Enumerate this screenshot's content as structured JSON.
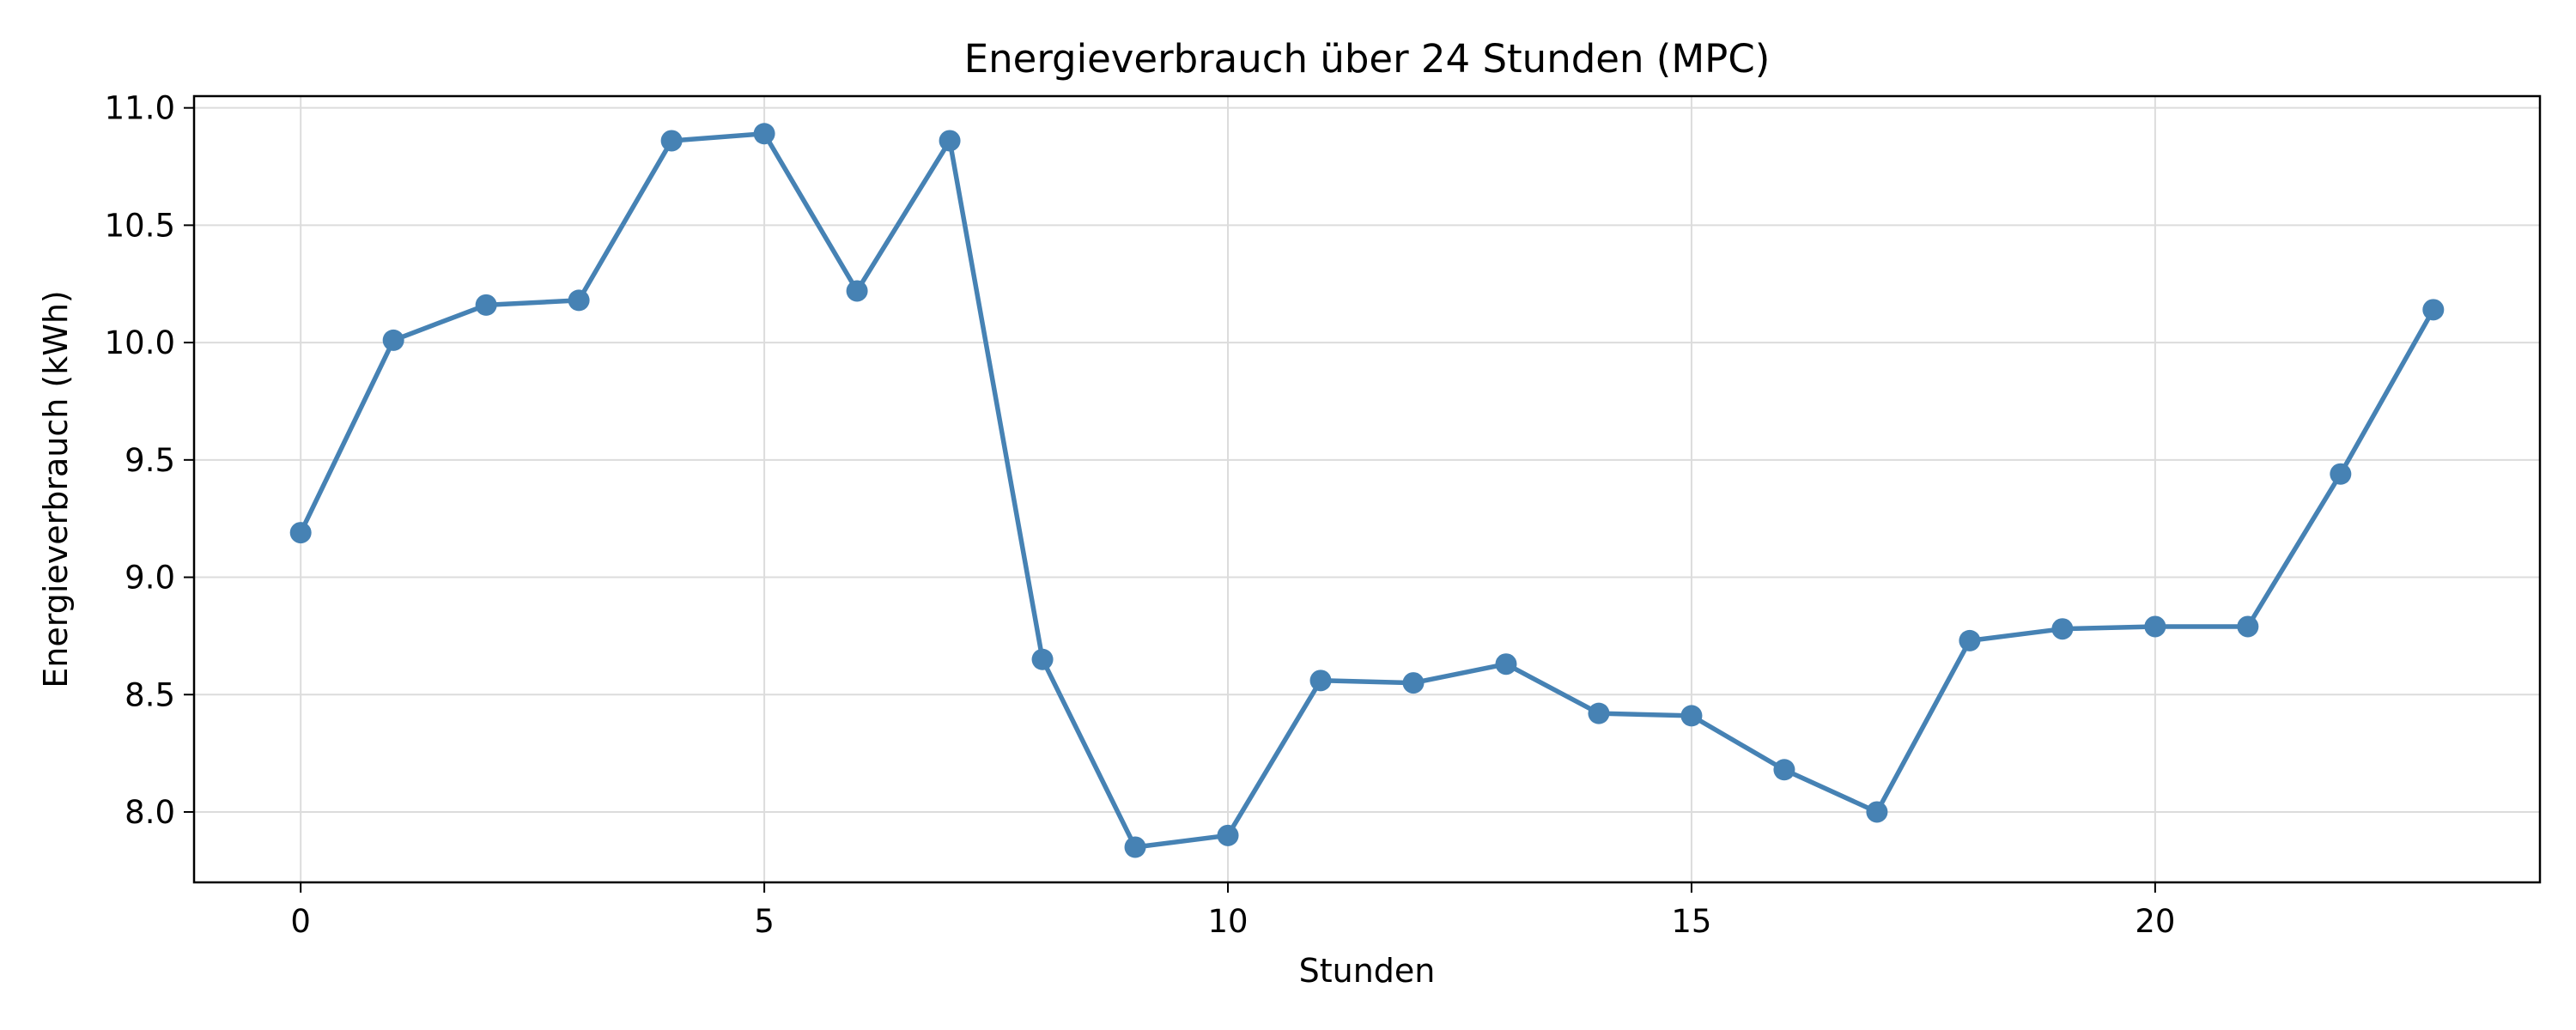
{
  "chart_data": {
    "type": "line",
    "title": "Energieverbrauch über 24 Stunden (MPC)",
    "xlabel": "Stunden",
    "ylabel": "Energieverbrauch (kWh)",
    "xlim": [
      -1.15,
      24.15
    ],
    "ylim": [
      7.7,
      11.05
    ],
    "xticks": [
      0,
      5,
      10,
      15,
      20
    ],
    "yticks": [
      8.0,
      8.5,
      9.0,
      9.5,
      10.0,
      10.5,
      11.0
    ],
    "ytick_labels": [
      "8.0",
      "8.5",
      "9.0",
      "9.5",
      "10.0",
      "10.5",
      "11.0"
    ],
    "grid": true,
    "legend": "none",
    "series": [
      {
        "color": "#4682b4",
        "marker": "circle",
        "x": [
          0,
          1,
          2,
          3,
          4,
          5,
          6,
          7,
          8,
          9,
          10,
          11,
          12,
          13,
          14,
          15,
          16,
          17,
          18,
          19,
          20,
          21,
          22,
          23
        ],
        "values": [
          9.19,
          10.01,
          10.16,
          10.18,
          10.86,
          10.89,
          10.22,
          10.86,
          8.65,
          7.85,
          7.9,
          8.56,
          8.55,
          8.63,
          8.42,
          8.41,
          8.18,
          8.0,
          8.73,
          8.78,
          8.79,
          8.79,
          9.44,
          10.14
        ]
      }
    ]
  }
}
